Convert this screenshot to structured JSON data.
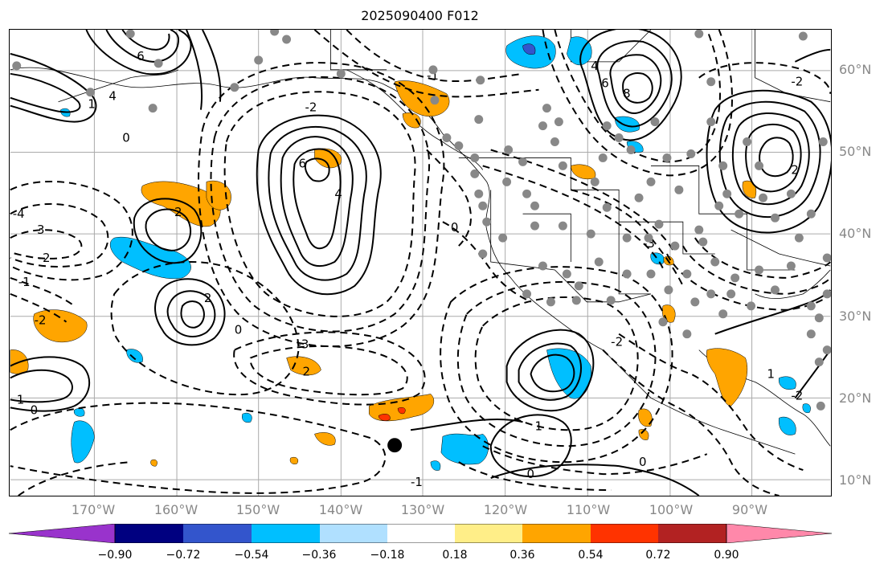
{
  "title": "2025090400 F012",
  "lat_labels": [
    "60°N",
    "50°N",
    "40°N",
    "30°N",
    "20°N",
    "10°N"
  ],
  "lon_labels": [
    "170°W",
    "160°W",
    "150°W",
    "140°W",
    "130°W",
    "120°W",
    "110°W",
    "100°W",
    "90°W"
  ],
  "colorbar": {
    "colors": [
      "#9933cc",
      "#000080",
      "#3355cc",
      "#00bfff",
      "#b0e0ff",
      "#ffffff",
      "#ffee88",
      "#ffa500",
      "#ff3300",
      "#b22222",
      "#ff88aa"
    ],
    "tick_labels": [
      "−0.90",
      "−0.72",
      "−0.54",
      "−0.36",
      "−0.18",
      "0.18",
      "0.36",
      "0.54",
      "0.72",
      "0.90"
    ]
  },
  "contour_labels": [
    "6",
    "4",
    "2",
    "1",
    "0",
    "-1",
    "-2",
    "-3",
    "-4",
    "6",
    "4",
    "2",
    "0",
    "8",
    "6",
    "4",
    "2",
    "-2",
    "-3",
    "-2",
    "2",
    "-1",
    "-2",
    "1",
    "0",
    "0",
    "-2",
    "1",
    "0",
    "-1",
    "-3",
    "1",
    "0",
    "-2"
  ],
  "marker": "storm-center-dot"
}
